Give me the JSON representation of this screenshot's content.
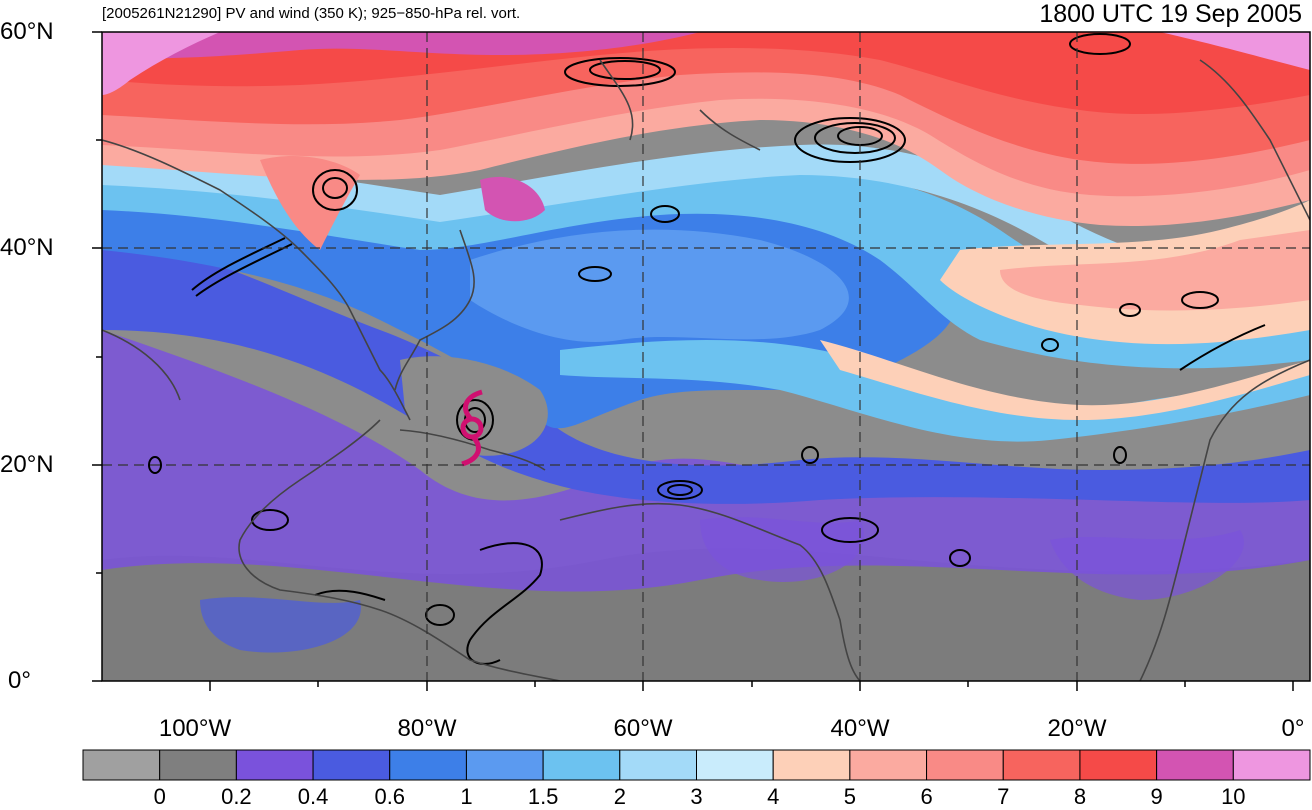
{
  "title": "[2005261N21290] PV and wind (350 K); 925−850-hPa rel. vort.",
  "time_label": "1800 UTC 19 Sep 2005",
  "map": {
    "lon_range": [
      -110,
      0
    ],
    "lat_range": [
      0,
      60
    ],
    "lat_labels": [
      "60°N",
      "40°N",
      "20°N",
      "0°"
    ],
    "lon_labels": [
      "100°W",
      "80°W",
      "60°W",
      "40°W",
      "20°W",
      "0°"
    ]
  },
  "colorbar": {
    "colors": [
      "#a0a0a0",
      "#7f7f7f",
      "#7a52dc",
      "#4a5be0",
      "#3d7fe8",
      "#5b9af0",
      "#6cc2f0",
      "#a3daf8",
      "#c9ecfc",
      "#fdd0b8",
      "#fbaaa0",
      "#f98a86",
      "#f7645e",
      "#f54a48",
      "#d354b2",
      "#ee96e0"
    ],
    "labels": [
      "0",
      "0.2",
      "0.4",
      "0.6",
      "1",
      "1.5",
      "2",
      "3",
      "4",
      "5",
      "6",
      "7",
      "8",
      "9",
      "10"
    ]
  }
}
